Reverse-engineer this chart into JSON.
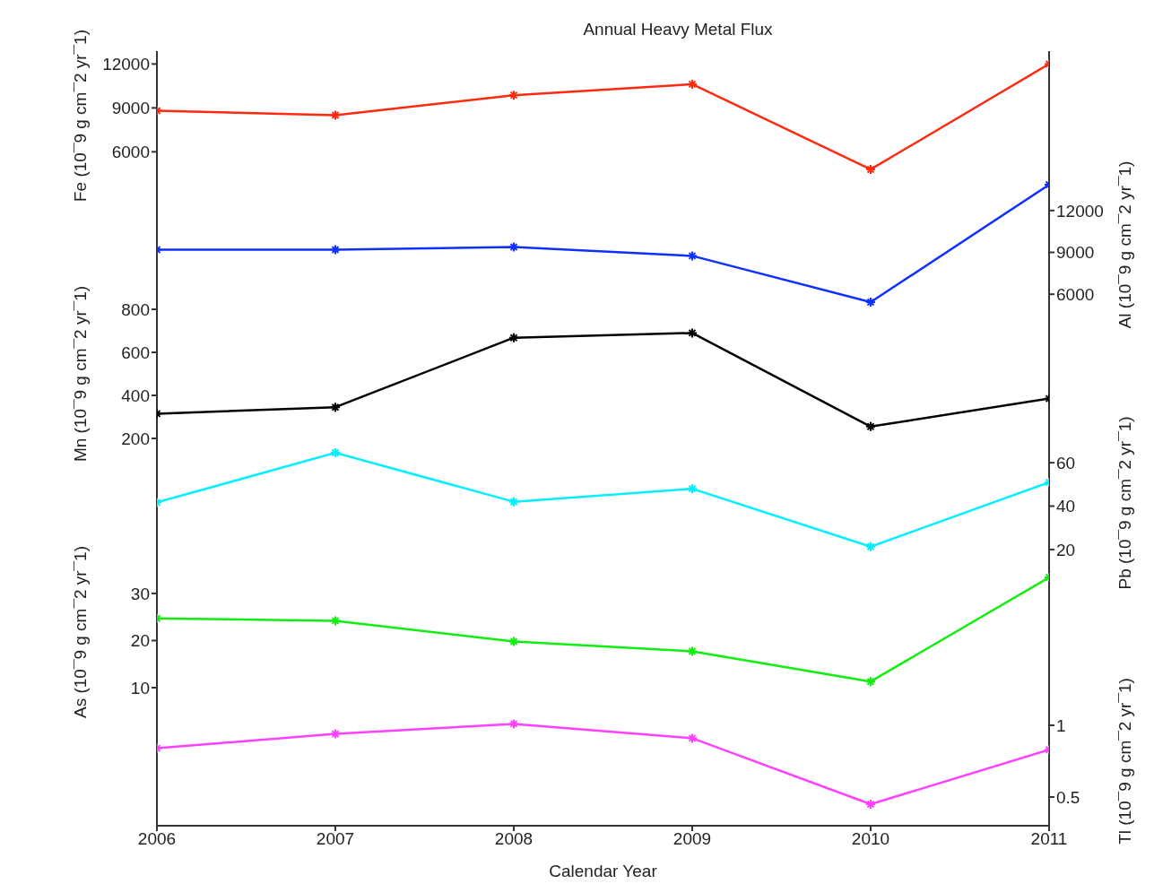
{
  "chart_data": [
    {
      "type": "line",
      "title": "Annual Heavy Metal Flux",
      "ylabel": "Fe (10¯9 g cm¯2 yr¯1)",
      "x": [
        2006,
        2007,
        2008,
        2009,
        2010,
        2011
      ],
      "xlim": [
        2006,
        2011
      ],
      "xticks": [
        2006,
        2007,
        2008,
        2009,
        2010,
        2011
      ],
      "ylim": [
        4060,
        12880
      ],
      "yticks": [
        6000,
        9000,
        12000
      ],
      "marker": "cross",
      "tick_labels": "y",
      "series": [
        {
          "color": "#ff2a10",
          "values": [
            8810,
            8500,
            9870,
            10620,
            4800,
            12000
          ]
        }
      ]
    },
    {
      "type": "line",
      "y2label": "Al (10¯9 g cm¯2 yr¯1)",
      "x": [
        2006,
        2007,
        2008,
        2009,
        2010,
        2011
      ],
      "xlim": [
        2006,
        2011
      ],
      "xticks": [
        2006,
        2007,
        2008,
        2009,
        2010,
        2011
      ],
      "y2lim": [
        4920,
        14170
      ],
      "y2ticks": [
        6000,
        9000,
        12000
      ],
      "marker": "cross",
      "tick_labels": "y",
      "series": [
        {
          "color": "#1030ff",
          "axis": "y2",
          "values": [
            9190,
            9190,
            9380,
            8750,
            5430,
            13850
          ]
        }
      ]
    },
    {
      "type": "line",
      "ylabel": "Mn (10¯9 g cm¯2 yr¯1)",
      "x": [
        2006,
        2007,
        2008,
        2009,
        2010,
        2011
      ],
      "xlim": [
        2006,
        2011
      ],
      "xticks": [
        2006,
        2007,
        2008,
        2009,
        2010,
        2011
      ],
      "ylim": [
        200,
        800
      ],
      "yticks": [
        200,
        400,
        600,
        800
      ],
      "marker": "cross",
      "tick_labels": "y",
      "series": [
        {
          "color": "#000000",
          "values": [
            315,
            345,
            668,
            690,
            255,
            385
          ]
        }
      ]
    },
    {
      "type": "line",
      "y2label": "Pb (10¯9 g cm¯2 yr¯1)",
      "x": [
        2006,
        2007,
        2008,
        2009,
        2010,
        2011
      ],
      "xlim": [
        2006,
        2011
      ],
      "xticks": [
        2006,
        2007,
        2008,
        2009,
        2010,
        2011
      ],
      "y2lim": [
        11.7,
        71.2
      ],
      "y2ticks": [
        20,
        40,
        60
      ],
      "marker": "cross",
      "tick_labels": "y",
      "series": [
        {
          "color": "#00f0ff",
          "axis": "y2",
          "values": [
            41.7,
            64.6,
            42,
            48,
            21.3,
            51
          ]
        }
      ]
    },
    {
      "type": "line",
      "ylabel": "As (10¯9 g cm¯2 yr¯1)",
      "x": [
        2006,
        2007,
        2008,
        2009,
        2010,
        2011
      ],
      "xlim": [
        2006,
        2011
      ],
      "xticks": [
        2006,
        2007,
        2008,
        2009,
        2010,
        2011
      ],
      "ylim": [
        8.1,
        35.5
      ],
      "yticks": [
        10,
        20,
        30
      ],
      "marker": "cross",
      "tick_labels": "y",
      "series": [
        {
          "color": "#10ee10",
          "values": [
            24.7,
            24.2,
            19.8,
            17.7,
            11.3,
            33.4
          ]
        }
      ]
    },
    {
      "type": "line",
      "xlabel": "Calendar Year",
      "y2label": "Tl (10¯9 g cm¯2 yr¯1)",
      "x": [
        2006,
        2007,
        2008,
        2009,
        2010,
        2011
      ],
      "xlim": [
        2006,
        2011
      ],
      "xticks": [
        2006,
        2007,
        2008,
        2009,
        2010,
        2011
      ],
      "y2lim": [
        0.3,
        1.2
      ],
      "y2ticks": [
        0.5,
        1
      ],
      "marker": "cross",
      "series": [
        {
          "color": "#ff40ff",
          "axis": "y2",
          "values": [
            0.84,
            0.94,
            1.01,
            0.91,
            0.45,
            0.83
          ]
        }
      ]
    }
  ]
}
